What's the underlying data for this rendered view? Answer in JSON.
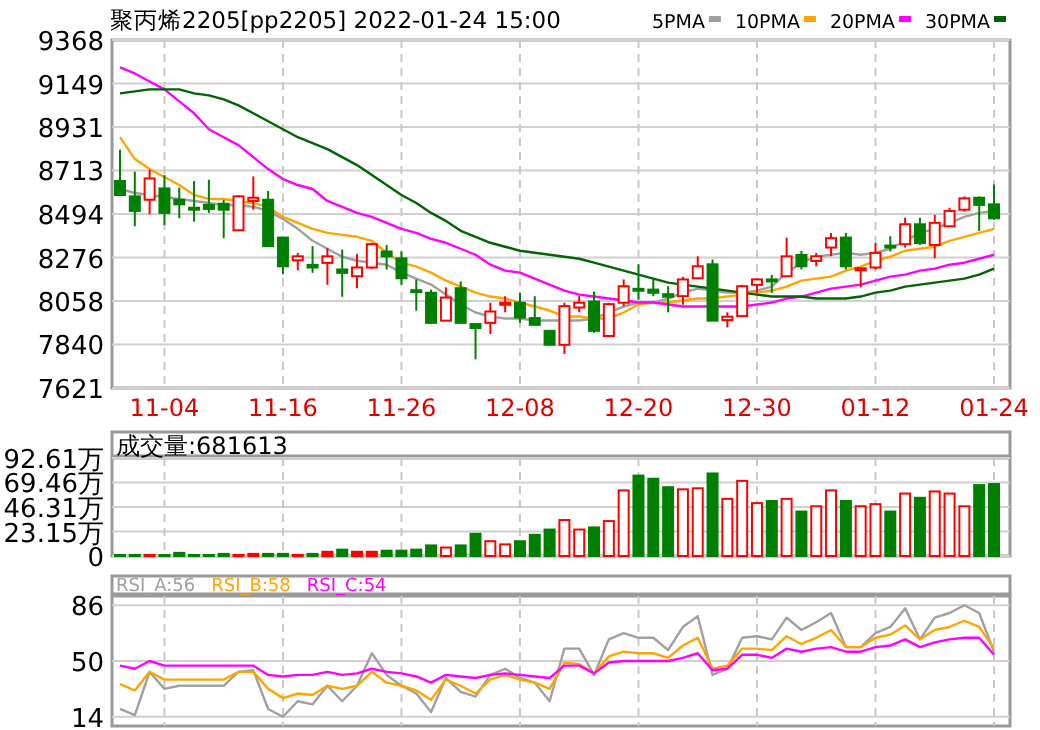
{
  "chart_data": [
    {
      "type": "candlestick",
      "title": "聚丙烯2205[pp2205] 2022-01-24 15:00",
      "categories": [
        null,
        null,
        null,
        "11-04",
        null,
        null,
        null,
        null,
        null,
        null,
        null,
        "11-16",
        null,
        null,
        null,
        null,
        null,
        null,
        null,
        "11-26",
        null,
        null,
        null,
        null,
        null,
        null,
        null,
        "12-08",
        null,
        null,
        null,
        null,
        null,
        null,
        null,
        "12-20",
        null,
        null,
        null,
        null,
        null,
        null,
        null,
        "12-30",
        null,
        null,
        null,
        null,
        null,
        null,
        null,
        "01-12",
        null,
        null,
        null,
        null,
        null,
        null,
        null,
        "01-24"
      ],
      "ohlc": [
        [
          8660,
          8817,
          8590,
          8590
        ],
        [
          8583,
          8707,
          8433,
          8510
        ],
        [
          8566,
          8717,
          8493,
          8673
        ],
        [
          8623,
          8690,
          8439,
          8500
        ],
        [
          8566,
          8627,
          8473,
          8543
        ],
        [
          8526,
          8660,
          8456,
          8520
        ],
        [
          8540,
          8667,
          8500,
          8520
        ],
        [
          8546,
          8566,
          8373,
          8516
        ],
        [
          8413,
          8590,
          8413,
          8583
        ],
        [
          8560,
          8683,
          8516,
          8576
        ],
        [
          8566,
          8610,
          8333,
          8333
        ],
        [
          8376,
          8376,
          8192,
          8232
        ],
        [
          8262,
          8299,
          8212,
          8282
        ],
        [
          8239,
          8333,
          8199,
          8226
        ],
        [
          8249,
          8323,
          8139,
          8282
        ],
        [
          8216,
          8316,
          8079,
          8199
        ],
        [
          8182,
          8293,
          8122,
          8226
        ],
        [
          8226,
          8349,
          8219,
          8343
        ],
        [
          8306,
          8339,
          8216,
          8282
        ],
        [
          8272,
          8306,
          8139,
          8172
        ],
        [
          8112,
          8166,
          8009,
          8105
        ],
        [
          8099,
          8115,
          7942,
          7948
        ],
        [
          7959,
          8126,
          7959,
          8075
        ],
        [
          8122,
          8156,
          7948,
          7948
        ],
        [
          7942,
          7942,
          7765,
          7922
        ],
        [
          7948,
          8049,
          7892,
          8005
        ],
        [
          8039,
          8082,
          8001,
          8049
        ],
        [
          8049,
          8099,
          7948,
          7975
        ],
        [
          7972,
          8082,
          7938,
          7938
        ],
        [
          7908,
          7908,
          7838,
          7838
        ],
        [
          7838,
          8049,
          7792,
          8032
        ],
        [
          8025,
          8082,
          8001,
          8049
        ],
        [
          8055,
          8105,
          7898,
          7908
        ],
        [
          7882,
          8049,
          7882,
          8042
        ],
        [
          8049,
          8166,
          8032,
          8132
        ],
        [
          8119,
          8242,
          8065,
          8109
        ],
        [
          8115,
          8172,
          8082,
          8099
        ],
        [
          8092,
          8132,
          8001,
          8079
        ],
        [
          8082,
          8179,
          8039,
          8166
        ],
        [
          8172,
          8282,
          8172,
          8232
        ],
        [
          8242,
          8266,
          7959,
          7959
        ],
        [
          7962,
          8001,
          7925,
          7979
        ],
        [
          7982,
          8139,
          7982,
          8132
        ],
        [
          8139,
          8172,
          8099,
          8166
        ],
        [
          8166,
          8189,
          8099,
          8156
        ],
        [
          8182,
          8376,
          8182,
          8282
        ],
        [
          8289,
          8309,
          8216,
          8232
        ],
        [
          8259,
          8299,
          8232,
          8282
        ],
        [
          8326,
          8399,
          8282,
          8373
        ],
        [
          8376,
          8399,
          8216,
          8232
        ],
        [
          8216,
          8226,
          8126,
          8222
        ],
        [
          8226,
          8349,
          8216,
          8299
        ],
        [
          8336,
          8383,
          8306,
          8326
        ],
        [
          8343,
          8476,
          8326,
          8443
        ],
        [
          8443,
          8476,
          8339,
          8349
        ],
        [
          8339,
          8490,
          8272,
          8450
        ],
        [
          8433,
          8526,
          8433,
          8510
        ],
        [
          8516,
          8583,
          8506,
          8573
        ],
        [
          8576,
          8583,
          8409,
          8540
        ],
        [
          8543,
          8643,
          8466,
          8473
        ]
      ],
      "colors": [
        "#008000",
        "#008000",
        "#ff0000",
        "#008000",
        "#008000",
        "#008000",
        "#008000",
        "#008000",
        "#ff0000",
        "#ff0000",
        "#008000",
        "#008000",
        "#ff0000",
        "#008000",
        "#ff0000",
        "#008000",
        "#ff0000",
        "#ff0000",
        "#008000",
        "#008000",
        "#008000",
        "#008000",
        "#ff0000",
        "#008000",
        "#008000",
        "#ff0000",
        "#ff0000",
        "#008000",
        "#008000",
        "#008000",
        "#ff0000",
        "#ff0000",
        "#008000",
        "#ff0000",
        "#ff0000",
        "#008000",
        "#008000",
        "#008000",
        "#ff0000",
        "#ff0000",
        "#008000",
        "#ff0000",
        "#ff0000",
        "#ff0000",
        "#008000",
        "#ff0000",
        "#008000",
        "#ff0000",
        "#ff0000",
        "#008000",
        "#ff0000",
        "#ff0000",
        "#008000",
        "#ff0000",
        "#008000",
        "#ff0000",
        "#ff0000",
        "#ff0000",
        "#008000",
        "#008000"
      ],
      "series": [
        {
          "name": "5PMA",
          "type": "line",
          "color": "#a0a0a0",
          "values": [
            8620,
            8600,
            8590,
            8580,
            8570,
            8560,
            8550,
            8540,
            8540,
            8530,
            8510,
            8470,
            8420,
            8360,
            8320,
            8280,
            8260,
            8250,
            8240,
            8200,
            8170,
            8140,
            8090,
            8040,
            8000,
            7980,
            7970,
            7970,
            7960,
            7960,
            7960,
            7960,
            7970,
            8000,
            8030,
            8050,
            8050,
            8070,
            8100,
            8120,
            8110,
            8100,
            8100,
            8110,
            8130,
            8200,
            8250,
            8280,
            8290,
            8300,
            8290,
            8300,
            8320,
            8360,
            8400,
            8420,
            8450,
            8480,
            8500,
            8510
          ]
        },
        {
          "name": "10PMA",
          "type": "line",
          "color": "#ffa500",
          "values": [
            8880,
            8770,
            8720,
            8680,
            8640,
            8590,
            8570,
            8570,
            8560,
            8550,
            8530,
            8480,
            8450,
            8420,
            8400,
            8390,
            8380,
            8360,
            8300,
            8250,
            8230,
            8200,
            8160,
            8130,
            8100,
            8080,
            8070,
            8050,
            8030,
            8010,
            7980,
            7980,
            7970,
            7970,
            8000,
            8040,
            8050,
            8050,
            8060,
            8070,
            8070,
            8080,
            8090,
            8100,
            8110,
            8130,
            8160,
            8170,
            8180,
            8210,
            8230,
            8260,
            8280,
            8310,
            8320,
            8330,
            8360,
            8380,
            8400,
            8420
          ]
        },
        {
          "name": "20PMA",
          "type": "line",
          "color": "#ff00ff",
          "values": [
            9230,
            9200,
            9160,
            9120,
            9060,
            9000,
            8920,
            8880,
            8840,
            8780,
            8720,
            8670,
            8640,
            8620,
            8560,
            8530,
            8500,
            8480,
            8450,
            8420,
            8400,
            8370,
            8350,
            8320,
            8290,
            8240,
            8210,
            8200,
            8170,
            8140,
            8110,
            8090,
            8080,
            8070,
            8060,
            8050,
            8050,
            8040,
            8030,
            8030,
            8030,
            8030,
            8030,
            8040,
            8050,
            8070,
            8080,
            8100,
            8120,
            8130,
            8140,
            8160,
            8180,
            8190,
            8210,
            8220,
            8240,
            8250,
            8270,
            8290
          ]
        },
        {
          "name": "30PMA",
          "type": "line",
          "color": "#006400",
          "values": [
            9100,
            9110,
            9120,
            9120,
            9120,
            9100,
            9090,
            9070,
            9040,
            9000,
            8960,
            8920,
            8880,
            8850,
            8820,
            8780,
            8740,
            8690,
            8640,
            8590,
            8550,
            8500,
            8460,
            8410,
            8380,
            8350,
            8330,
            8310,
            8300,
            8290,
            8280,
            8270,
            8250,
            8230,
            8210,
            8190,
            8170,
            8150,
            8140,
            8130,
            8120,
            8110,
            8100,
            8090,
            8080,
            8080,
            8080,
            8070,
            8070,
            8070,
            8080,
            8100,
            8110,
            8130,
            8140,
            8150,
            8160,
            8170,
            8190,
            8220
          ]
        }
      ],
      "ylim": [
        7621,
        9368
      ],
      "yticks": [
        7621,
        7840,
        8058,
        8276,
        8494,
        8713,
        8931,
        9149,
        9368
      ],
      "grid": true,
      "legend": "top right"
    },
    {
      "type": "bar",
      "title": "成交量:681613",
      "categories": [
        null,
        null,
        null,
        null,
        null,
        null,
        null,
        null,
        null,
        null,
        null,
        null,
        null,
        null,
        null,
        null,
        null,
        null,
        null,
        null,
        null,
        null,
        null,
        null,
        null,
        null,
        null,
        null,
        null,
        null,
        null,
        null,
        null,
        null,
        null,
        null,
        null,
        null,
        null,
        null,
        null,
        null,
        null,
        null,
        null,
        null,
        null,
        null,
        null,
        null,
        null,
        null,
        null,
        null,
        null,
        null,
        null,
        null,
        null,
        null
      ],
      "values": [
        1,
        1,
        1,
        1,
        3,
        1,
        1,
        2,
        1,
        2,
        2,
        2,
        1,
        2,
        4,
        6,
        4,
        4,
        5,
        5,
        6,
        10,
        8,
        10,
        21,
        14,
        11,
        14,
        20,
        25,
        34,
        25,
        27,
        33,
        62,
        76,
        73,
        65,
        63,
        64,
        78,
        54,
        71,
        50,
        52,
        54,
        42,
        47,
        62,
        52,
        47,
        49,
        42,
        59,
        55,
        61,
        59,
        47,
        67,
        68
      ],
      "colors": [
        "#008000",
        "#008000",
        "#ff0000",
        "#008000",
        "#008000",
        "#008000",
        "#008000",
        "#008000",
        "#ff0000",
        "#ff0000",
        "#008000",
        "#008000",
        "#ff0000",
        "#008000",
        "#ff0000",
        "#008000",
        "#ff0000",
        "#ff0000",
        "#008000",
        "#008000",
        "#008000",
        "#008000",
        "#ff0000",
        "#008000",
        "#008000",
        "#ff0000",
        "#ff0000",
        "#008000",
        "#008000",
        "#008000",
        "#ff0000",
        "#ff0000",
        "#008000",
        "#ff0000",
        "#ff0000",
        "#008000",
        "#008000",
        "#008000",
        "#ff0000",
        "#ff0000",
        "#008000",
        "#ff0000",
        "#ff0000",
        "#ff0000",
        "#008000",
        "#ff0000",
        "#008000",
        "#ff0000",
        "#ff0000",
        "#008000",
        "#ff0000",
        "#ff0000",
        "#008000",
        "#ff0000",
        "#008000",
        "#ff0000",
        "#ff0000",
        "#ff0000",
        "#008000",
        "#008000"
      ],
      "ylim": [
        0,
        92.61
      ],
      "yticks": [
        0,
        {
          "value": 23.15,
          "label": "23.15万"
        },
        {
          "value": 46.31,
          "label": "46.31万"
        },
        {
          "value": 69.46,
          "label": "69.46万"
        },
        {
          "value": 92.61,
          "label": "92.61万"
        }
      ],
      "grid": true,
      "tick_labels": "y"
    },
    {
      "type": "line",
      "categories": [
        null,
        null,
        null,
        null,
        null,
        null,
        null,
        null,
        null,
        null,
        null,
        null,
        null,
        null,
        null,
        null,
        null,
        null,
        null,
        null,
        null,
        null,
        null,
        null,
        null,
        null,
        null,
        null,
        null,
        null,
        null,
        null,
        null,
        null,
        null,
        null,
        null,
        null,
        null,
        null,
        null,
        null,
        null,
        null,
        null,
        null,
        null,
        null,
        null,
        null,
        null,
        null,
        null,
        null,
        null,
        null,
        null,
        null,
        null,
        null
      ],
      "series": [
        {
          "name": "RSI_A:56",
          "color": "#a0a0a0",
          "values": [
            19,
            15,
            43,
            32,
            34,
            34,
            34,
            34,
            43,
            44,
            19,
            14,
            24,
            22,
            34,
            24,
            34,
            55,
            41,
            34,
            29,
            17,
            39,
            30,
            27,
            41,
            45,
            39,
            36,
            24,
            58,
            58,
            41,
            64,
            68,
            65,
            65,
            57,
            72,
            79,
            41,
            45,
            65,
            66,
            64,
            78,
            70,
            75,
            81,
            59,
            59,
            68,
            72,
            84,
            64,
            78,
            81,
            86,
            81,
            56
          ]
        },
        {
          "name": "RSI_B:58",
          "color": "#ffa500",
          "values": [
            35,
            31,
            43,
            38,
            38,
            38,
            38,
            38,
            43,
            43,
            32,
            26,
            29,
            28,
            34,
            32,
            34,
            43,
            36,
            34,
            31,
            25,
            38,
            34,
            29,
            38,
            41,
            38,
            36,
            32,
            49,
            48,
            42,
            53,
            56,
            55,
            55,
            52,
            60,
            65,
            45,
            47,
            58,
            58,
            57,
            66,
            61,
            65,
            70,
            59,
            59,
            65,
            67,
            73,
            64,
            70,
            72,
            76,
            72,
            58
          ]
        },
        {
          "name": "RSI_C:54",
          "color": "#ff00ff",
          "values": [
            47,
            45,
            50,
            47,
            47,
            47,
            47,
            47,
            47,
            47,
            41,
            40,
            41,
            41,
            43,
            41,
            42,
            45,
            43,
            42,
            40,
            36,
            41,
            40,
            39,
            41,
            42,
            41,
            40,
            39,
            47,
            47,
            42,
            49,
            50,
            50,
            50,
            50,
            52,
            55,
            44,
            45,
            54,
            54,
            52,
            58,
            56,
            58,
            59,
            56,
            56,
            59,
            60,
            64,
            59,
            62,
            64,
            65,
            65,
            54
          ]
        }
      ],
      "ylim": [
        8,
        92
      ],
      "yticks": [
        14,
        50,
        86
      ],
      "grid": true,
      "legend": "top left",
      "tick_labels": "y"
    }
  ]
}
